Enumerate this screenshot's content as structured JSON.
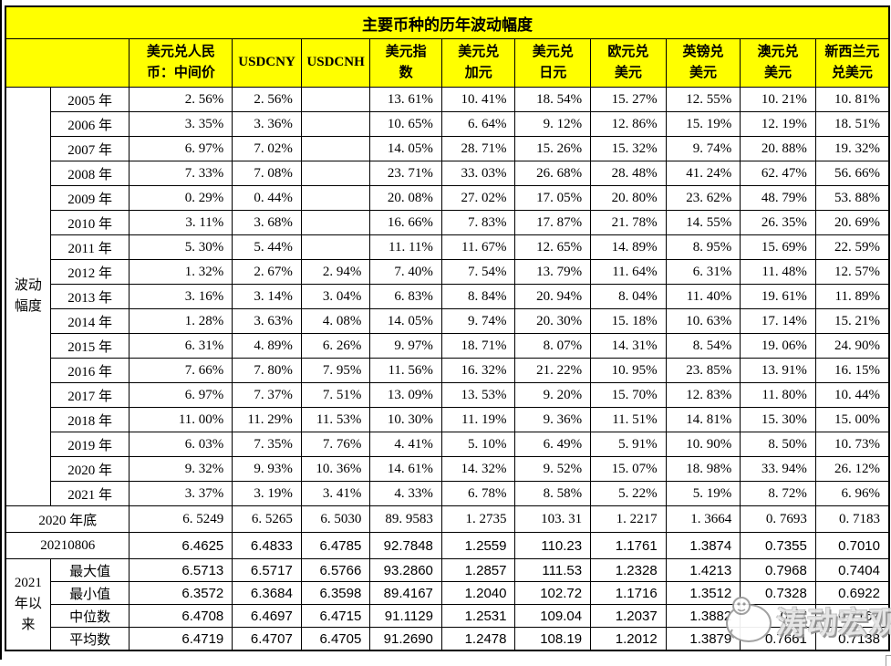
{
  "chart_data": {
    "type": "table",
    "title": "主要币种的历年波动幅度",
    "column_headers": [
      "美元兑人民币：中间价",
      "USDCNY",
      "USDCNH",
      "美元指数",
      "美元兑加元",
      "美元兑日元",
      "欧元兑美元",
      "英镑兑美元",
      "澳元兑美元",
      "新西兰元兑美元"
    ],
    "header_display": [
      "美元兑人民\n币：中间价",
      "USDCNY",
      "USDCNH",
      "美元指\n数",
      "美元兑\n加元",
      "美元兑\n日元",
      "欧元兑\n美元",
      "英镑兑\n美元",
      "澳元兑\n美元",
      "新西兰元\n兑美元"
    ],
    "row_group_label": "波动幅度",
    "year_rows": [
      {
        "label": "2005 年",
        "values": [
          "2. 56%",
          "2. 56%",
          "",
          "13. 61%",
          "10. 41%",
          "18. 54%",
          "15. 27%",
          "12. 55%",
          "10. 21%",
          "10. 81%"
        ]
      },
      {
        "label": "2006 年",
        "values": [
          "3. 35%",
          "3. 36%",
          "",
          "10. 65%",
          "6. 64%",
          "9. 12%",
          "12. 86%",
          "15. 19%",
          "12. 19%",
          "18. 51%"
        ]
      },
      {
        "label": "2007 年",
        "values": [
          "6. 97%",
          "7. 02%",
          "",
          "14. 05%",
          "28. 71%",
          "15. 26%",
          "15. 32%",
          "9. 74%",
          "20. 88%",
          "19. 32%"
        ]
      },
      {
        "label": "2008 年",
        "values": [
          "7. 33%",
          "7. 08%",
          "",
          "23. 71%",
          "33. 03%",
          "26. 68%",
          "28. 48%",
          "41. 24%",
          "62. 47%",
          "56. 66%"
        ]
      },
      {
        "label": "2009 年",
        "values": [
          "0. 29%",
          "0. 44%",
          "",
          "20. 08%",
          "27. 02%",
          "17. 05%",
          "20. 80%",
          "23. 62%",
          "48. 79%",
          "53. 88%"
        ]
      },
      {
        "label": "2010 年",
        "values": [
          "3. 11%",
          "3. 68%",
          "",
          "16. 66%",
          "7. 83%",
          "17. 87%",
          "21. 78%",
          "14. 55%",
          "26. 35%",
          "20. 69%"
        ]
      },
      {
        "label": "2011 年",
        "values": [
          "5. 30%",
          "5. 44%",
          "",
          "11. 11%",
          "11. 67%",
          "12. 65%",
          "14. 89%",
          "8. 95%",
          "15. 69%",
          "22. 59%"
        ]
      },
      {
        "label": "2012 年",
        "values": [
          "1. 32%",
          "2. 67%",
          "2. 94%",
          "7. 40%",
          "7. 54%",
          "13. 79%",
          "11. 64%",
          "6. 31%",
          "11. 48%",
          "12. 57%"
        ]
      },
      {
        "label": "2013 年",
        "values": [
          "3. 16%",
          "3. 14%",
          "3. 04%",
          "6. 83%",
          "8. 84%",
          "20. 94%",
          "8. 04%",
          "11. 40%",
          "19. 61%",
          "11. 89%"
        ]
      },
      {
        "label": "2014 年",
        "values": [
          "1. 28%",
          "3. 63%",
          "4. 08%",
          "14. 05%",
          "9. 74%",
          "20. 30%",
          "15. 18%",
          "10. 63%",
          "17. 14%",
          "15. 21%"
        ]
      },
      {
        "label": "2015 年",
        "values": [
          "6. 31%",
          "4. 89%",
          "6. 26%",
          "9. 97%",
          "18. 71%",
          "8. 07%",
          "14. 31%",
          "8. 54%",
          "19. 06%",
          "24. 90%"
        ]
      },
      {
        "label": "2016 年",
        "values": [
          "7. 66%",
          "7. 80%",
          "7. 95%",
          "11. 56%",
          "16. 32%",
          "21. 22%",
          "10. 95%",
          "23. 85%",
          "13. 91%",
          "16. 15%"
        ]
      },
      {
        "label": "2017 年",
        "values": [
          "6. 97%",
          "7. 37%",
          "7. 51%",
          "13. 09%",
          "13. 53%",
          "9. 20%",
          "15. 70%",
          "12. 83%",
          "11. 80%",
          "10. 44%"
        ]
      },
      {
        "label": "2018 年",
        "values": [
          "11. 00%",
          "11. 29%",
          "11. 53%",
          "10. 30%",
          "11. 19%",
          "9. 36%",
          "11. 51%",
          "14. 81%",
          "15. 30%",
          "15. 00%"
        ]
      },
      {
        "label": "2019 年",
        "values": [
          "6. 03%",
          "7. 35%",
          "7. 76%",
          "4. 41%",
          "5. 10%",
          "6. 49%",
          "5. 91%",
          "10. 90%",
          "8. 50%",
          "10. 73%"
        ]
      },
      {
        "label": "2020 年",
        "values": [
          "9. 32%",
          "9. 93%",
          "10. 36%",
          "14. 61%",
          "14. 32%",
          "9. 52%",
          "15. 07%",
          "18. 98%",
          "33. 94%",
          "26. 12%"
        ]
      },
      {
        "label": "2021 年",
        "values": [
          "3. 37%",
          "3. 19%",
          "3. 41%",
          "4. 33%",
          "6. 78%",
          "8. 58%",
          "5. 22%",
          "5. 19%",
          "8. 72%",
          "6. 96%"
        ]
      }
    ],
    "summary_rows": [
      {
        "label": "2020 年底",
        "font": "serif",
        "values": [
          "6. 5249",
          "6. 5265",
          "6. 5030",
          "89. 9583",
          "1. 2735",
          "103. 31",
          "1. 2217",
          "1. 3664",
          "0. 7693",
          "0. 7183"
        ]
      },
      {
        "label": "20210806",
        "font": "sans",
        "values": [
          "6.4625",
          "6.4833",
          "6.4785",
          "92.7848",
          "1.2559",
          "110.23",
          "1.1761",
          "1.3874",
          "0.7355",
          "0.7010"
        ]
      }
    ],
    "stats_group_label": "2021年以来",
    "stats_rows": [
      {
        "label": "最大值",
        "values": [
          "6.5713",
          "6.5717",
          "6.5766",
          "93.2860",
          "1.2857",
          "111.53",
          "1.2328",
          "1.4213",
          "0.7968",
          "0.7404"
        ]
      },
      {
        "label": "最小值",
        "values": [
          "6.3572",
          "6.3684",
          "6.3598",
          "89.4167",
          "1.2040",
          "102.72",
          "1.1716",
          "1.3512",
          "0.7328",
          "0.6922"
        ]
      },
      {
        "label": "中位数",
        "values": [
          "6.4708",
          "6.4697",
          "6.4715",
          "91.1129",
          "1.2531",
          "109.04",
          "1.2037",
          "1.3882",
          "0.77",
          "0.7167"
        ]
      },
      {
        "label": "平均数",
        "values": [
          "6.4719",
          "6.4707",
          "6.4705",
          "91.2690",
          "1.2478",
          "108.19",
          "1.2012",
          "1.3879",
          "0.7661",
          "0.7138"
        ]
      }
    ]
  },
  "watermark": {
    "text": "涛动宏观"
  },
  "colors": {
    "header_bg": "#FFFF00",
    "border": "#000000",
    "text": "#000000",
    "watermark_gray": "#9a9a9a"
  }
}
